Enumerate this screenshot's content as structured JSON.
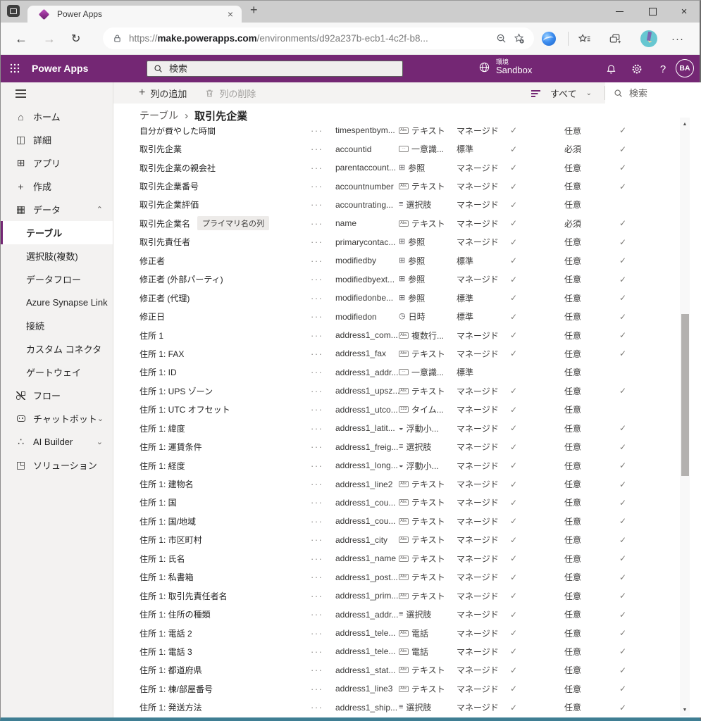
{
  "browser": {
    "tab_title": "Power Apps",
    "url_scheme": "https://",
    "url_host": "make.powerapps.com",
    "url_path": "/environments/d92a237b-ecb1-4c2f-b8..."
  },
  "appbar": {
    "app_name": "Power Apps",
    "search_placeholder": "検索",
    "env_label": "環境",
    "env_name": "Sandbox",
    "help": "?",
    "avatar": "BA"
  },
  "cmdbar": {
    "add_label": "列の追加",
    "delete_label": "列の削除",
    "filter_label": "すべて",
    "search_placeholder": "検索"
  },
  "breadcrumb": {
    "parent": "テーブル",
    "separator": "›",
    "current": "取引先企業"
  },
  "sidebar": {
    "icon_glyphs": {
      "home": "⌂",
      "book": "◫",
      "apps": "⊞",
      "plus": "+",
      "table": "▦",
      "ai": "∴",
      "solution": "◳"
    },
    "items": [
      {
        "id": "home",
        "icon": "home",
        "label": "ホーム"
      },
      {
        "id": "details",
        "icon": "book",
        "label": "詳細"
      },
      {
        "id": "apps",
        "icon": "apps",
        "label": "アプリ"
      },
      {
        "id": "create",
        "icon": "plus",
        "label": "作成"
      },
      {
        "id": "data",
        "icon": "table",
        "label": "データ",
        "chevron": "up"
      },
      {
        "id": "tables",
        "label": "テーブル",
        "sub": true,
        "selected": true
      },
      {
        "id": "choices",
        "label": "選択肢(複数)",
        "sub": true
      },
      {
        "id": "dataflows",
        "label": "データフロー",
        "sub": true
      },
      {
        "id": "azure-synapse-link",
        "label": "Azure Synapse Link",
        "sub": true
      },
      {
        "id": "connections",
        "label": "接続",
        "sub": true
      },
      {
        "id": "custom-connectors",
        "label": "カスタム コネクタ",
        "sub": true
      },
      {
        "id": "gateways",
        "label": "ゲートウェイ",
        "sub": true
      },
      {
        "id": "flows",
        "icon": "flow",
        "label": "フロー"
      },
      {
        "id": "chatbots",
        "icon": "bot",
        "label": "チャットボット",
        "chevron": "down"
      },
      {
        "id": "ai-builder",
        "icon": "ai",
        "label": "AI Builder",
        "chevron": "down"
      },
      {
        "id": "solutions",
        "icon": "solution",
        "label": "ソリューション"
      }
    ]
  },
  "type_icons": {
    "text": {
      "style": "box",
      "glyph": "Abc"
    },
    "phone": {
      "style": "box",
      "glyph": "Abc"
    },
    "multiline": {
      "style": "box",
      "glyph": "Abc"
    },
    "timezone": {
      "style": "box",
      "glyph": "123"
    },
    "unique": {
      "style": "box",
      "glyph": "···"
    },
    "lookup": {
      "style": "glyph",
      "glyph": "⊞"
    },
    "choice": {
      "style": "glyph",
      "glyph": "≡"
    },
    "datetime": {
      "style": "glyph",
      "glyph": "◷"
    },
    "float": {
      "style": "glyph",
      "glyph": "◒"
    }
  },
  "table": {
    "rows": [
      {
        "name": "自分が費やした時間",
        "logical": "timespentbym...",
        "type_icon": "text",
        "type_label": "テキスト",
        "managed": "マネージド",
        "check1": true,
        "req": "任意",
        "check2": true
      },
      {
        "name": "取引先企業",
        "logical": "accountid",
        "type_icon": "unique",
        "type_label": "一意識...",
        "managed": "標準",
        "check1": true,
        "req": "必須",
        "check2": true
      },
      {
        "name": "取引先企業の親会社",
        "logical": "parentaccount...",
        "type_icon": "lookup",
        "type_label": "参照",
        "managed": "マネージド",
        "check1": true,
        "req": "任意",
        "check2": true
      },
      {
        "name": "取引先企業番号",
        "logical": "accountnumber",
        "type_icon": "text",
        "type_label": "テキスト",
        "managed": "マネージド",
        "check1": true,
        "req": "任意",
        "check2": true
      },
      {
        "name": "取引先企業評価",
        "logical": "accountrating...",
        "type_icon": "choice",
        "type_label": "選択肢",
        "managed": "マネージド",
        "check1": true,
        "req": "任意",
        "check2": false
      },
      {
        "name": "取引先企業名",
        "badge": "プライマリ名の列",
        "logical": "name",
        "type_icon": "text",
        "type_label": "テキスト",
        "managed": "マネージド",
        "check1": true,
        "req": "必須",
        "check2": true
      },
      {
        "name": "取引先責任者",
        "logical": "primarycontac...",
        "type_icon": "lookup",
        "type_label": "参照",
        "managed": "マネージド",
        "check1": true,
        "req": "任意",
        "check2": true
      },
      {
        "name": "修正者",
        "logical": "modifiedby",
        "type_icon": "lookup",
        "type_label": "参照",
        "managed": "標準",
        "check1": true,
        "req": "任意",
        "check2": true
      },
      {
        "name": "修正者 (外部パーティ)",
        "logical": "modifiedbyext...",
        "type_icon": "lookup",
        "type_label": "参照",
        "managed": "マネージド",
        "check1": true,
        "req": "任意",
        "check2": true
      },
      {
        "name": "修正者 (代理)",
        "logical": "modifiedonbe...",
        "type_icon": "lookup",
        "type_label": "参照",
        "managed": "標準",
        "check1": true,
        "req": "任意",
        "check2": true
      },
      {
        "name": "修正日",
        "logical": "modifiedon",
        "type_icon": "datetime",
        "type_label": "日時",
        "managed": "標準",
        "check1": true,
        "req": "任意",
        "check2": true
      },
      {
        "name": "住所 1",
        "logical": "address1_com...",
        "type_icon": "multiline",
        "type_label": "複数行...",
        "managed": "マネージド",
        "check1": true,
        "req": "任意",
        "check2": true
      },
      {
        "name": "住所 1: FAX",
        "logical": "address1_fax",
        "type_icon": "text",
        "type_label": "テキスト",
        "managed": "マネージド",
        "check1": true,
        "req": "任意",
        "check2": true
      },
      {
        "name": "住所 1: ID",
        "logical": "address1_addr...",
        "type_icon": "unique",
        "type_label": "一意識...",
        "managed": "標準",
        "check1": false,
        "req": "任意",
        "check2": false
      },
      {
        "name": "住所 1: UPS ゾーン",
        "logical": "address1_upsz...",
        "type_icon": "text",
        "type_label": "テキスト",
        "managed": "マネージド",
        "check1": true,
        "req": "任意",
        "check2": true
      },
      {
        "name": "住所 1: UTC オフセット",
        "logical": "address1_utco...",
        "type_icon": "timezone",
        "type_label": "タイム...",
        "managed": "マネージド",
        "check1": true,
        "req": "任意",
        "check2": false
      },
      {
        "name": "住所 1: 緯度",
        "logical": "address1_latit...",
        "type_icon": "float",
        "type_label": "浮動小...",
        "managed": "マネージド",
        "check1": true,
        "req": "任意",
        "check2": true
      },
      {
        "name": "住所 1: 運賃条件",
        "logical": "address1_freig...",
        "type_icon": "choice",
        "type_label": "選択肢",
        "managed": "マネージド",
        "check1": true,
        "req": "任意",
        "check2": true
      },
      {
        "name": "住所 1: 経度",
        "logical": "address1_long...",
        "type_icon": "float",
        "type_label": "浮動小...",
        "managed": "マネージド",
        "check1": true,
        "req": "任意",
        "check2": true
      },
      {
        "name": "住所 1: 建物名",
        "logical": "address1_line2",
        "type_icon": "text",
        "type_label": "テキスト",
        "managed": "マネージド",
        "check1": true,
        "req": "任意",
        "check2": true
      },
      {
        "name": "住所 1: 国",
        "logical": "address1_cou...",
        "type_icon": "text",
        "type_label": "テキスト",
        "managed": "マネージド",
        "check1": true,
        "req": "任意",
        "check2": true
      },
      {
        "name": "住所 1: 国/地域",
        "logical": "address1_cou...",
        "type_icon": "text",
        "type_label": "テキスト",
        "managed": "マネージド",
        "check1": true,
        "req": "任意",
        "check2": true
      },
      {
        "name": "住所 1: 市区町村",
        "logical": "address1_city",
        "type_icon": "text",
        "type_label": "テキスト",
        "managed": "マネージド",
        "check1": true,
        "req": "任意",
        "check2": true
      },
      {
        "name": "住所 1: 氏名",
        "logical": "address1_name",
        "type_icon": "text",
        "type_label": "テキスト",
        "managed": "マネージド",
        "check1": true,
        "req": "任意",
        "check2": true
      },
      {
        "name": "住所 1: 私書箱",
        "logical": "address1_post...",
        "type_icon": "text",
        "type_label": "テキスト",
        "managed": "マネージド",
        "check1": true,
        "req": "任意",
        "check2": true
      },
      {
        "name": "住所 1: 取引先責任者名",
        "logical": "address1_prim...",
        "type_icon": "text",
        "type_label": "テキスト",
        "managed": "マネージド",
        "check1": true,
        "req": "任意",
        "check2": true
      },
      {
        "name": "住所 1: 住所の種類",
        "logical": "address1_addr...",
        "type_icon": "choice",
        "type_label": "選択肢",
        "managed": "マネージド",
        "check1": true,
        "req": "任意",
        "check2": true
      },
      {
        "name": "住所 1: 電話 2",
        "logical": "address1_tele...",
        "type_icon": "phone",
        "type_label": "電話",
        "managed": "マネージド",
        "check1": true,
        "req": "任意",
        "check2": true
      },
      {
        "name": "住所 1: 電話 3",
        "logical": "address1_tele...",
        "type_icon": "phone",
        "type_label": "電話",
        "managed": "マネージド",
        "check1": true,
        "req": "任意",
        "check2": true
      },
      {
        "name": "住所 1: 都道府県",
        "logical": "address1_stat...",
        "type_icon": "text",
        "type_label": "テキスト",
        "managed": "マネージド",
        "check1": true,
        "req": "任意",
        "check2": true
      },
      {
        "name": "住所 1: 棟/部屋番号",
        "logical": "address1_line3",
        "type_icon": "text",
        "type_label": "テキスト",
        "managed": "マネージド",
        "check1": true,
        "req": "任意",
        "check2": true
      },
      {
        "name": "住所 1: 発送方法",
        "logical": "address1_ship...",
        "type_icon": "choice",
        "type_label": "選択肢",
        "managed": "マネージド",
        "check1": true,
        "req": "任意",
        "check2": true
      }
    ]
  },
  "ui": {
    "check": "✓",
    "more": "···",
    "scroll_up": "▲",
    "scroll_down": "▼",
    "chevron_up": "⌃",
    "chevron_down": "⌄",
    "back": "←",
    "forward": "→",
    "refresh": "↻",
    "new_tab": "+",
    "close": "×",
    "more_h": "···"
  }
}
